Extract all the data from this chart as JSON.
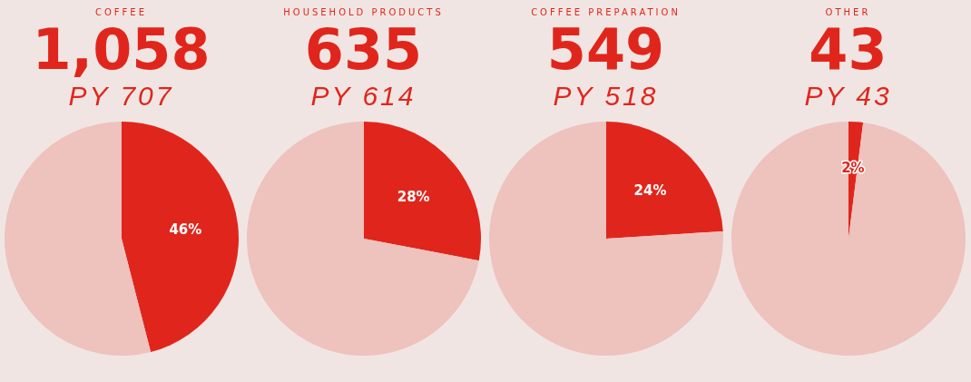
{
  "chart_data": [
    {
      "type": "pie",
      "title": "COFFEE",
      "subtitle": "1,058",
      "annotations": [
        "PY 707"
      ],
      "categories": [
        null,
        null
      ],
      "values": [
        46,
        54
      ],
      "colors": [
        "#e0261c",
        "#eec2bd"
      ],
      "value_labels": [
        "46%",
        null
      ]
    },
    {
      "type": "pie",
      "title": "HOUSEHOLD PRODUCTS",
      "subtitle": "635",
      "annotations": [
        "PY 614"
      ],
      "categories": [
        null,
        null
      ],
      "values": [
        28,
        72
      ],
      "colors": [
        "#e0261c",
        "#eec2bd"
      ],
      "value_labels": [
        "28%",
        null
      ]
    },
    {
      "type": "pie",
      "title": "COFFEE PREPARATION",
      "subtitle": "549",
      "annotations": [
        "PY 518"
      ],
      "categories": [
        null,
        null
      ],
      "values": [
        24,
        76
      ],
      "colors": [
        "#e0261c",
        "#eec2bd"
      ],
      "value_labels": [
        "24%",
        null
      ]
    },
    {
      "type": "pie",
      "title": "OTHER",
      "subtitle": "43",
      "annotations": [
        "PY 43"
      ],
      "categories": [
        null,
        null
      ],
      "values": [
        2,
        98
      ],
      "colors": [
        "#e0261c",
        "#eec2bd"
      ],
      "value_labels": [
        "2%",
        null
      ]
    }
  ]
}
